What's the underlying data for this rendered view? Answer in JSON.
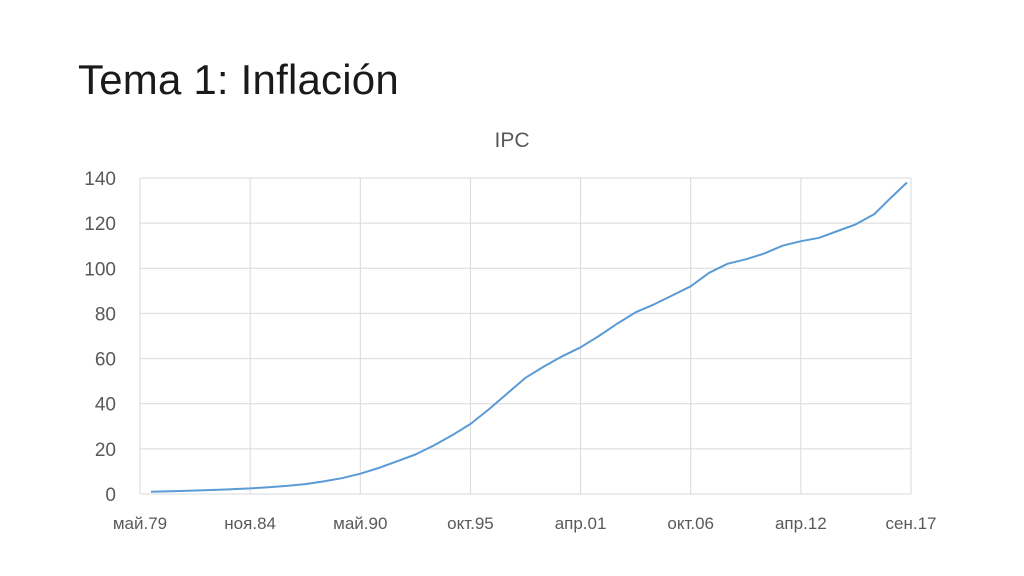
{
  "slide": {
    "title": "Tema 1: Inflación"
  },
  "chart_data": {
    "type": "line",
    "title": "IPC",
    "xlabel": "",
    "ylabel": "",
    "ylim": [
      0,
      140
    ],
    "yticks": [
      "0",
      "20",
      "40",
      "60",
      "80",
      "100",
      "120",
      "140"
    ],
    "xticks": [
      "май.79",
      "ноя.84",
      "май.90",
      "окт.95",
      "апр.01",
      "окт.06",
      "апр.12",
      "сен.17"
    ],
    "grid": true,
    "legend": "none",
    "series_color": "#5b9bd5",
    "series": [
      {
        "x": [
          "май.79",
          "ноя.80",
          "май.82",
          "ноя.83",
          "ноя.84",
          "ноя.85",
          "ноя.86",
          "ноя.87",
          "ноя.88",
          "ноя.89",
          "май.90",
          "ноя.90",
          "ноя.91",
          "ноя.92",
          "ноя.93",
          "ноя.94",
          "окт.95",
          "окт.96",
          "окт.97",
          "окт.98",
          "окт.99",
          "окт.00",
          "апр.01",
          "окт.01",
          "окт.02",
          "окт.03",
          "окт.04",
          "окт.05",
          "окт.06",
          "окт.07",
          "окт.08",
          "окт.09",
          "окт.10",
          "окт.11",
          "апр.12",
          "окт.12",
          "окт.13",
          "окт.14",
          "окт.15",
          "окт.16",
          "сен.17"
        ],
        "values": [
          1.0,
          1.3,
          1.6,
          2.0,
          2.5,
          3.0,
          3.6,
          4.4,
          5.6,
          7.0,
          9.0,
          11.5,
          14.5,
          17.5,
          21.5,
          26.0,
          31.0,
          37.5,
          44.5,
          51.5,
          56.5,
          61.0,
          65.0,
          70.0,
          75.5,
          80.5,
          84.0,
          88.0,
          92.0,
          98.0,
          102.0,
          104.0,
          106.5,
          110.0,
          112.0,
          113.5,
          116.5,
          119.5,
          124.0,
          132.0,
          138.0
        ]
      }
    ]
  }
}
